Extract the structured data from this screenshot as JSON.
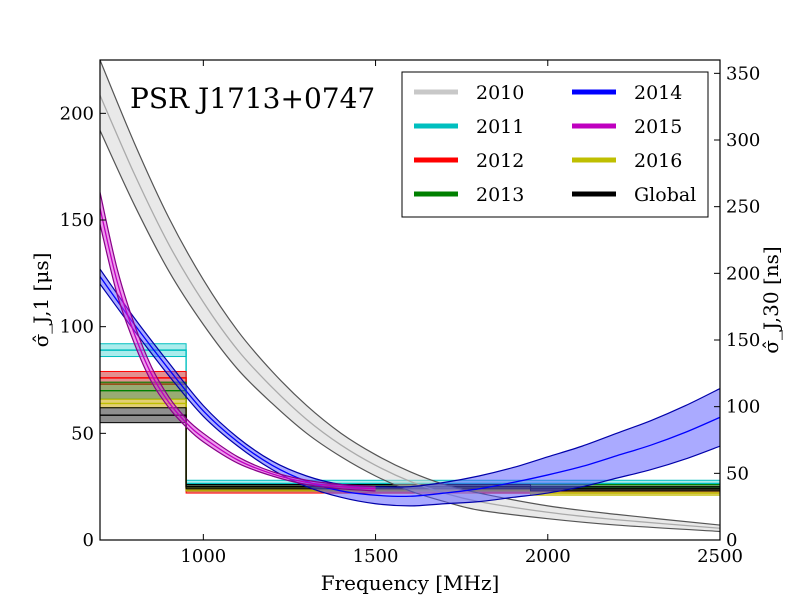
{
  "chart_data": {
    "type": "line",
    "title": "PSR J1713+0747",
    "xlabel": "Frequency [MHz]",
    "ylabel": "σ̂_J,1 [μs]",
    "ylabel_right": "σ̂_J,30 [ns]",
    "xlim": [
      700,
      2500
    ],
    "ylim": [
      0,
      225
    ],
    "ylim_right": [
      0,
      360
    ],
    "x_ticks": [
      1000,
      1500,
      2000,
      2500
    ],
    "y_ticks": [
      0,
      50,
      100,
      150,
      200
    ],
    "y_ticks_right": [
      0,
      50,
      100,
      150,
      200,
      250,
      300,
      350
    ],
    "grid": false,
    "legend_position": "top-right",
    "legend": [
      {
        "name": "2010",
        "color": "#c8c8c8"
      },
      {
        "name": "2011",
        "color": "#00bfbf"
      },
      {
        "name": "2012",
        "color": "#ff0000"
      },
      {
        "name": "2013",
        "color": "#008000"
      },
      {
        "name": "2014",
        "color": "#0000ff"
      },
      {
        "name": "2015",
        "color": "#bf00bf"
      },
      {
        "name": "2016",
        "color": "#bfbf00"
      },
      {
        "name": "Global",
        "color": "#000000"
      }
    ],
    "curves": [
      {
        "name": "2010",
        "color": "#d3d3d3",
        "edge": "#555555",
        "center_color": "#aaaaaa",
        "x": [
          700,
          800,
          900,
          1000,
          1100,
          1200,
          1300,
          1400,
          1500,
          1600,
          1700,
          1800,
          2000,
          2200,
          2500
        ],
        "low": [
          192,
          157,
          126,
          101,
          80,
          64,
          50,
          39,
          30,
          23,
          18,
          14,
          10,
          7,
          4
        ],
        "high": [
          225,
          186,
          151,
          122,
          98,
          79,
          63,
          50,
          40,
          32,
          26,
          22,
          16,
          12,
          7
        ]
      },
      {
        "name": "2014",
        "color": "#5555ff",
        "edge": "#0000aa",
        "center_color": "#0000ff",
        "x": [
          700,
          800,
          900,
          1000,
          1100,
          1200,
          1300,
          1400,
          1500,
          1600,
          1700,
          1800,
          1900,
          2000,
          2100,
          2200,
          2300,
          2400,
          2500
        ],
        "low": [
          120,
          98,
          77,
          58,
          44,
          33,
          25,
          20,
          17,
          16,
          17,
          18,
          20,
          22,
          25,
          29,
          33,
          38,
          44
        ],
        "high": [
          127,
          104,
          83,
          63,
          48,
          37,
          30,
          26,
          25,
          25,
          27,
          30,
          34,
          39,
          44,
          50,
          56,
          63,
          71
        ]
      },
      {
        "name": "2015",
        "color": "#dd33dd",
        "edge": "#880088",
        "center_color": "#bf00bf",
        "x": [
          700,
          750,
          800,
          850,
          900,
          950,
          1000,
          1100,
          1200,
          1300,
          1400,
          1500
        ],
        "low": [
          148,
          115,
          92,
          74,
          62,
          53,
          46,
          36,
          30,
          26,
          24,
          23
        ],
        "high": [
          163,
          127,
          101,
          81,
          67,
          57,
          50,
          39,
          32,
          28,
          26,
          25
        ]
      }
    ],
    "steps": [
      {
        "name": "2011",
        "color": "#00bfbf",
        "fill": "#66dddd",
        "segments": [
          {
            "x": [
              700,
              950
            ],
            "low": 86,
            "high": 92
          },
          {
            "x": [
              950,
              2500
            ],
            "low": 25,
            "high": 28
          }
        ]
      },
      {
        "name": "2012",
        "color": "#ff0000",
        "fill": "#cc3333",
        "segments": [
          {
            "x": [
              700,
              950
            ],
            "low": 73,
            "high": 79
          },
          {
            "x": [
              950,
              2500
            ],
            "low": 22,
            "high": 24
          }
        ]
      },
      {
        "name": "2013",
        "color": "#008000",
        "fill": "#446600",
        "segments": [
          {
            "x": [
              700,
              950
            ],
            "low": 66,
            "high": 74
          },
          {
            "x": [
              950,
              2500
            ],
            "low": 23,
            "high": 26
          }
        ]
      },
      {
        "name": "2016",
        "color": "#bfbf00",
        "fill": "#ccaa00",
        "segments": [
          {
            "x": [
              700,
              950
            ],
            "low": 62,
            "high": 66
          },
          {
            "x": [
              950,
              1950
            ],
            "low": 23,
            "high": 25
          },
          {
            "x": [
              1950,
              2500
            ],
            "low": 21,
            "high": 23
          }
        ]
      },
      {
        "name": "Global",
        "color": "#000000",
        "fill": "#333333",
        "segments": [
          {
            "x": [
              700,
              950
            ],
            "low": 55,
            "high": 62
          },
          {
            "x": [
              950,
              1950
            ],
            "low": 24,
            "high": 26
          },
          {
            "x": [
              1950,
              2500
            ],
            "low": 23,
            "high": 25
          }
        ]
      }
    ]
  }
}
